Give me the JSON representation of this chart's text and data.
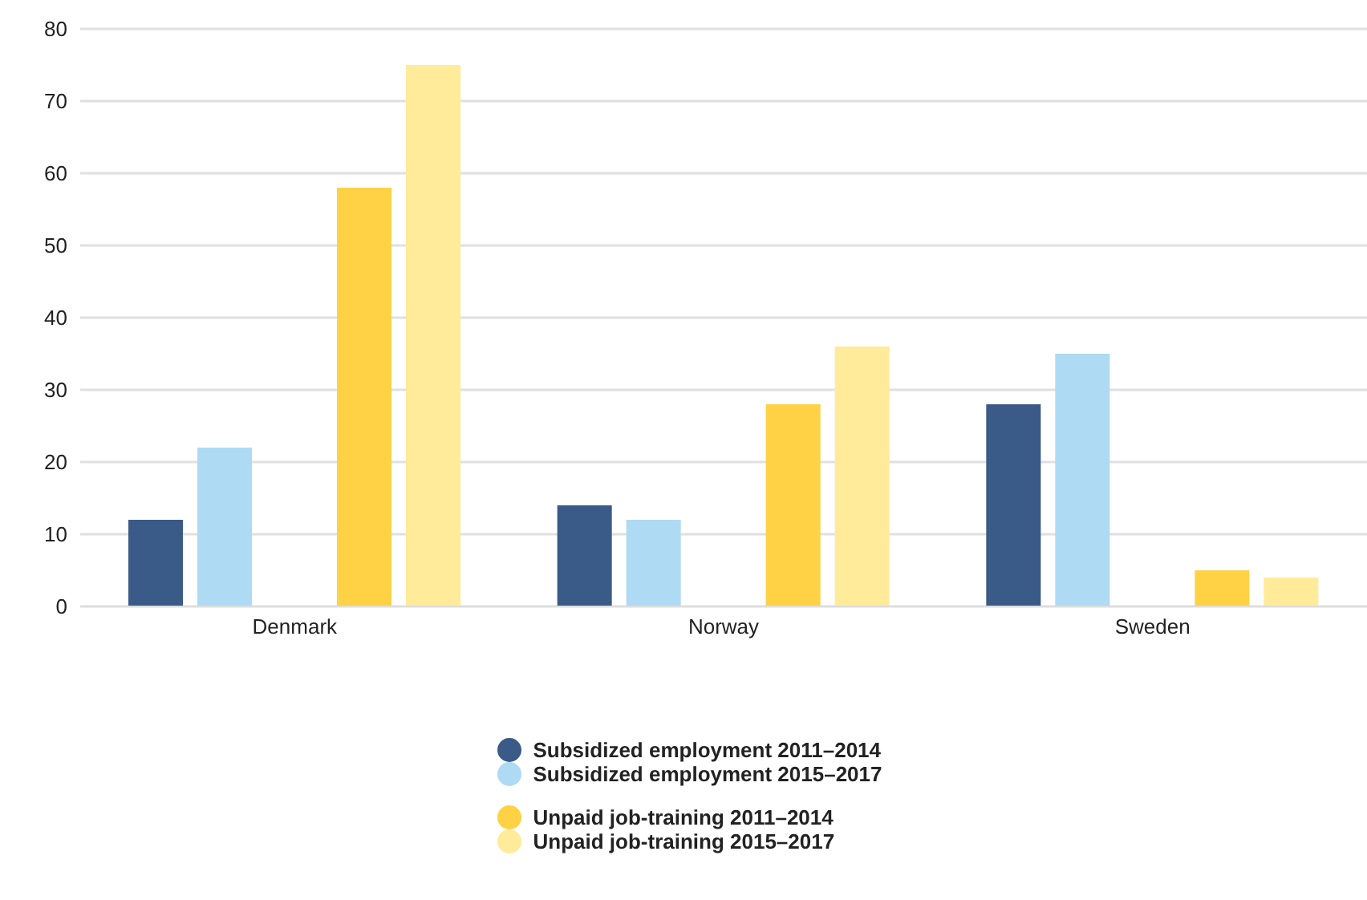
{
  "chart_data": {
    "type": "bar",
    "categories": [
      "Denmark",
      "Norway",
      "Sweden"
    ],
    "series": [
      {
        "name": "Subsidized employment 2011–2014",
        "color": "#3a5a88",
        "values": [
          12,
          14,
          28
        ]
      },
      {
        "name": "Subsidized employment 2015–2017",
        "color": "#aedaf4",
        "values": [
          22,
          12,
          35
        ]
      },
      {
        "name": "Unpaid job-training 2011–2014",
        "color": "#ffd144",
        "values": [
          58,
          28,
          5
        ]
      },
      {
        "name": "Unpaid job-training 2015–2017",
        "color": "#ffeb99",
        "values": [
          75,
          36,
          4
        ]
      }
    ],
    "ylim": [
      0,
      80
    ],
    "yticks": [
      0,
      10,
      20,
      30,
      40,
      50,
      60,
      70,
      80
    ],
    "grid": "y",
    "legend": "bottom"
  }
}
